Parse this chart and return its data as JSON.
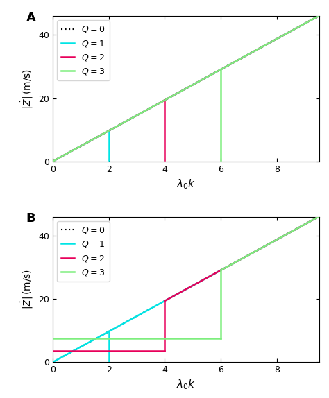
{
  "title_A": "A",
  "title_B": "B",
  "xlabel": "$\\lambda_0 k$",
  "ylabel": "$|\\dot{Z}|\\,(\\mathrm{m/s})$",
  "xlim": [
    0,
    9.5
  ],
  "ylim_A": [
    0,
    46
  ],
  "ylim_B": [
    0,
    46
  ],
  "xticks": [
    0,
    2,
    4,
    6,
    8
  ],
  "yticks_A": [
    0,
    20,
    40
  ],
  "yticks_B": [
    0,
    20,
    40
  ],
  "colors": {
    "Q0": "black",
    "Q1": "#00e5e5",
    "Q2": "#e8005a",
    "Q3": "#7eee7e"
  },
  "legend_labels": [
    "$Q = 0$",
    "$Q = 1$",
    "$Q = 2$",
    "$Q = 3$"
  ],
  "slope": 4.85,
  "jump_x_Q1": 2.0,
  "jump_x_Q2": 4.0,
  "jump_x_Q3": 6.0,
  "x_end": 9.5,
  "panel_A": {
    "Q1": {
      "x_jump": 2.0,
      "y_top": 9.7,
      "y_bot": 0.3
    },
    "Q2": {
      "x_jump": 4.0,
      "y_top": 19.4,
      "y_bot": 0.3
    },
    "Q3": {
      "x_jump": 6.0,
      "y_top": 29.1,
      "y_bot": 0.3
    }
  },
  "panel_B": {
    "Q1": {
      "x_jump": 2.0,
      "y_top": 9.7,
      "y_bot": 0.3,
      "y_before": 0.3
    },
    "Q2": {
      "x_jump": 4.0,
      "y_top": 19.4,
      "y_bot": 3.5,
      "y_before": 3.5
    },
    "Q3": {
      "x_jump": 6.0,
      "y_top": 29.1,
      "y_bot": 7.5,
      "y_before": 7.5
    }
  }
}
